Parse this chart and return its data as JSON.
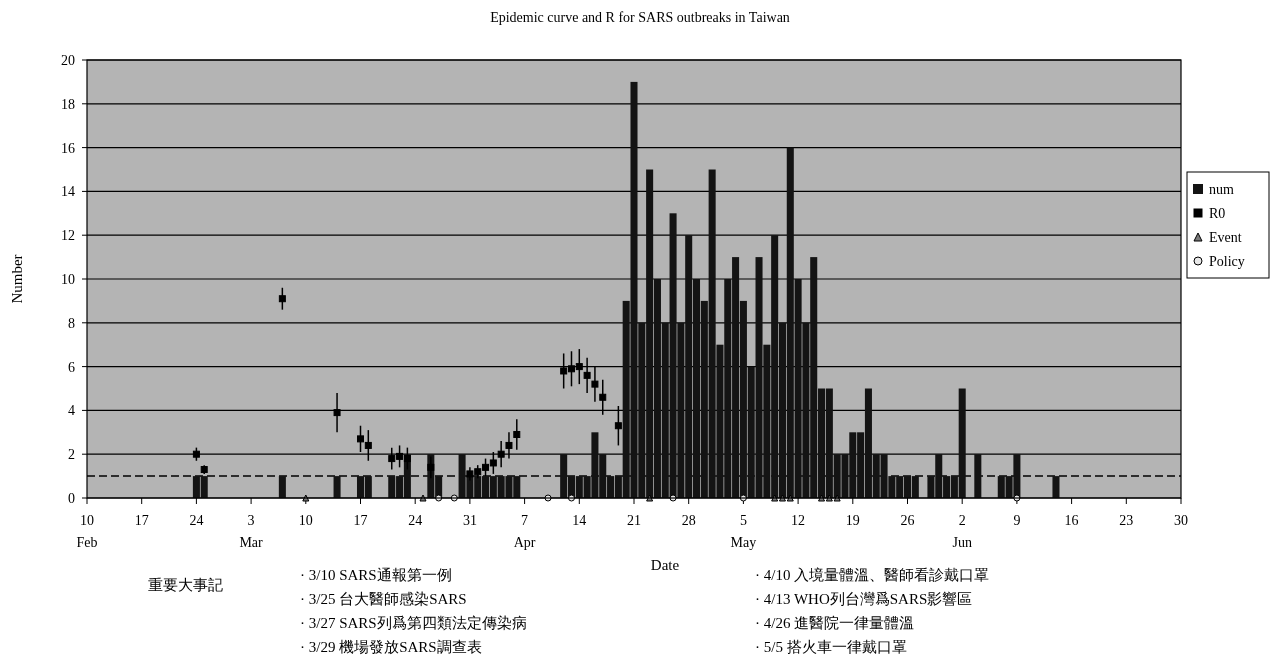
{
  "chart_data": {
    "type": "bar",
    "title": "Epidemic curve and R for SARS outbreaks in Taiwan",
    "xlabel": "Date",
    "ylabel": "Number",
    "xlim": [
      "--02-10",
      "--06-30"
    ],
    "xticks": [
      {
        "value": "--02-10",
        "label": "10\nFeb"
      },
      {
        "value": "--02-17",
        "label": "17"
      },
      {
        "value": "--02-24",
        "label": "24"
      },
      {
        "value": "--03-03",
        "label": "3\nMar"
      },
      {
        "value": "--03-10",
        "label": "10"
      },
      {
        "value": "--03-17",
        "label": "17"
      },
      {
        "value": "--03-24",
        "label": "24"
      },
      {
        "value": "--03-31",
        "label": "31"
      },
      {
        "value": "--04-07",
        "label": "7\nApr"
      },
      {
        "value": "--04-14",
        "label": "14"
      },
      {
        "value": "--04-21",
        "label": "21"
      },
      {
        "value": "--04-28",
        "label": "28"
      },
      {
        "value": "--05-05",
        "label": "5\nMay"
      },
      {
        "value": "--05-12",
        "label": "12"
      },
      {
        "value": "--05-19",
        "label": "19"
      },
      {
        "value": "--05-26",
        "label": "26"
      },
      {
        "value": "--06-02",
        "label": "2\nJun"
      },
      {
        "value": "--06-09",
        "label": "9"
      },
      {
        "value": "--06-16",
        "label": "16"
      },
      {
        "value": "--06-23",
        "label": "23"
      },
      {
        "value": "--06-30",
        "label": "30"
      }
    ],
    "ylim": [
      0,
      20
    ],
    "yticks": [
      0,
      2,
      4,
      6,
      8,
      10,
      12,
      14,
      16,
      18,
      20
    ],
    "grid": "y",
    "legend": "right",
    "ref_lines": [
      {
        "axis": "y",
        "value": 1,
        "line_style": "dashed",
        "color": "#000000"
      }
    ],
    "series": [
      {
        "name": "num",
        "color": "#141414",
        "x": [
          "--02-24",
          "--02-25",
          "--03-07",
          "--03-14",
          "--03-17",
          "--03-18",
          "--03-21",
          "--03-22",
          "--03-23",
          "--03-26",
          "--03-27",
          "--03-30",
          "--03-31",
          "--04-01",
          "--04-02",
          "--04-03",
          "--04-04",
          "--04-05",
          "--04-06",
          "--04-12",
          "--04-13",
          "--04-14",
          "--04-15",
          "--04-16",
          "--04-17",
          "--04-18",
          "--04-19",
          "--04-20",
          "--04-21",
          "--04-22",
          "--04-23",
          "--04-24",
          "--04-25",
          "--04-26",
          "--04-27",
          "--04-28",
          "--04-29",
          "--04-30",
          "--05-01",
          "--05-02",
          "--05-03",
          "--05-04",
          "--05-05",
          "--05-06",
          "--05-07",
          "--05-08",
          "--05-09",
          "--05-10",
          "--05-11",
          "--05-12",
          "--05-13",
          "--05-14",
          "--05-15",
          "--05-16",
          "--05-17",
          "--05-18",
          "--05-19",
          "--05-20",
          "--05-21",
          "--05-22",
          "--05-23",
          "--05-24",
          "--05-25",
          "--05-26",
          "--05-27",
          "--05-29",
          "--05-30",
          "--05-31",
          "--06-01",
          "--06-02",
          "--06-04",
          "--06-07",
          "--06-08",
          "--06-09",
          "--06-14"
        ],
        "values": [
          1,
          1,
          1,
          1,
          1,
          1,
          1,
          1,
          2,
          2,
          1,
          2,
          1,
          1,
          1,
          1,
          1,
          1,
          1,
          2,
          1,
          1,
          1,
          3,
          2,
          1,
          1,
          9,
          19,
          8,
          15,
          10,
          8,
          13,
          8,
          12,
          10,
          9,
          15,
          7,
          10,
          11,
          9,
          6,
          11,
          7,
          12,
          8,
          16,
          10,
          8,
          11,
          5,
          5,
          2,
          2,
          3,
          3,
          5,
          2,
          2,
          1,
          1,
          1,
          1,
          1,
          2,
          1,
          1,
          5,
          2,
          1,
          1,
          2,
          1
        ]
      },
      {
        "name": "R0",
        "type": "scatter",
        "marker": "square",
        "color": "#000000",
        "x": [
          "--02-24",
          "--02-25",
          "--03-07",
          "--03-14",
          "--03-17",
          "--03-18",
          "--03-21",
          "--03-22",
          "--03-23",
          "--03-26",
          "--03-31",
          "--04-01",
          "--04-02",
          "--04-03",
          "--04-04",
          "--04-05",
          "--04-06",
          "--04-12",
          "--04-13",
          "--04-14",
          "--04-15",
          "--04-16",
          "--04-17",
          "--04-19"
        ],
        "values": [
          2.0,
          1.3,
          9.1,
          3.9,
          2.7,
          2.4,
          1.8,
          1.9,
          1.8,
          1.4,
          1.1,
          1.2,
          1.4,
          1.6,
          2.0,
          2.4,
          2.9,
          5.8,
          5.9,
          6.0,
          5.6,
          5.2,
          4.6,
          3.3
        ],
        "errors": [
          0.3,
          0.2,
          0.5,
          0.9,
          0.6,
          0.7,
          0.5,
          0.5,
          0.5,
          0.5,
          0.3,
          0.3,
          0.4,
          0.5,
          0.6,
          0.6,
          0.7,
          0.8,
          0.8,
          0.8,
          0.8,
          0.8,
          0.8,
          0.9
        ]
      },
      {
        "name": "Event",
        "type": "scatter",
        "marker": "triangle",
        "color": "#7a7a7a",
        "x": [
          "--03-10",
          "--03-25",
          "--04-23",
          "--05-09",
          "--05-10",
          "--05-11",
          "--05-15",
          "--05-16",
          "--05-17"
        ],
        "values": [
          0,
          0,
          0,
          0,
          0,
          0,
          0,
          0,
          0
        ]
      },
      {
        "name": "Policy",
        "type": "scatter",
        "marker": "circle",
        "color": "#e8e8e8",
        "x": [
          "--03-27",
          "--03-29",
          "--04-10",
          "--04-13",
          "--04-26",
          "--05-05",
          "--06-09"
        ],
        "values": [
          0,
          0,
          0,
          0,
          0,
          0,
          0
        ]
      }
    ],
    "annotations": [
      "重要大事記",
      "· 3/10 SARS通報第一例",
      "· 3/25 台大醫師感染SARS",
      "· 3/27 SARS列爲第四類法定傳染病",
      "· 3/29 機場發放SARS調查表",
      "· 4/10 入境量體溫、醫師看診戴口罩",
      "· 4/13 WHO列台灣爲SARS影響區",
      "· 4/26 進醫院一律量體溫",
      "· 5/5 搭火車一律戴口罩"
    ]
  }
}
